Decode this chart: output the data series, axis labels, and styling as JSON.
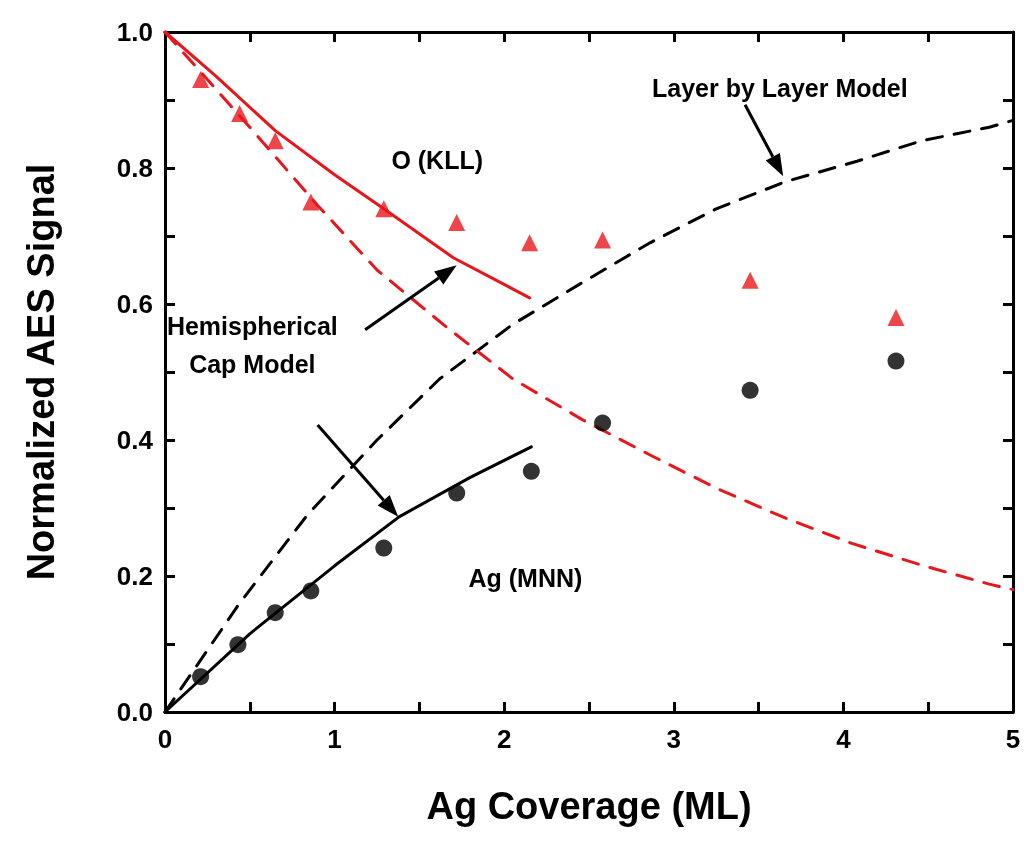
{
  "chart_data": {
    "type": "scatter",
    "xlabel": "Ag Coverage (ML)",
    "ylabel": "Normalized AES Signal",
    "xlim": [
      0,
      5
    ],
    "ylim": [
      0,
      1.0
    ],
    "xticks": [
      0,
      {
        "value": 0.5,
        "label": null
      },
      1,
      {
        "value": 1.5,
        "label": null
      },
      2,
      {
        "value": 2.5,
        "label": null
      },
      3,
      {
        "value": 3.5,
        "label": null
      },
      4,
      {
        "value": 4.5,
        "label": null
      },
      5
    ],
    "yticks": [
      {
        "value": 0,
        "label": "0.0"
      },
      {
        "value": 0.1,
        "label": null
      },
      {
        "value": 0.2,
        "label": "0.2"
      },
      {
        "value": 0.3,
        "label": null
      },
      {
        "value": 0.4,
        "label": "0.4"
      },
      {
        "value": 0.5,
        "label": null
      },
      {
        "value": 0.6,
        "label": "0.6"
      },
      {
        "value": 0.7,
        "label": null
      },
      {
        "value": 0.8,
        "label": "0.8"
      },
      {
        "value": 0.9,
        "label": null
      },
      {
        "value": 1.0,
        "label": "1.0"
      }
    ],
    "series": [
      {
        "type": "line",
        "color": "#000000",
        "marker": "none",
        "line_style": "dashed",
        "x": [
          0,
          0.44,
          0.84,
          1.25,
          1.62,
          2.05,
          2.45,
          2.86,
          3.25,
          3.66,
          4.08,
          4.46,
          4.86,
          5
        ],
        "values": [
          0,
          0.16,
          0.29,
          0.4,
          0.49,
          0.57,
          0.63,
          0.69,
          0.74,
          0.78,
          0.81,
          0.84,
          0.86,
          0.87
        ]
      },
      {
        "type": "line",
        "color": "#e8161b",
        "marker": "none",
        "line_style": "dashed",
        "x": [
          0,
          0.5,
          0.9,
          1.25,
          1.64,
          2.05,
          2.46,
          2.86,
          3.26,
          3.66,
          4.05,
          4.46,
          4.86,
          5
        ],
        "values": [
          1.0,
          0.86,
          0.745,
          0.65,
          0.57,
          0.49,
          0.43,
          0.378,
          0.328,
          0.285,
          0.248,
          0.216,
          0.188,
          0.18
        ]
      },
      {
        "type": "line",
        "color": "#e8161b",
        "marker": "none",
        "line_style": "solid",
        "x": [
          0,
          0.3,
          0.65,
          1.0,
          1.29,
          1.7,
          2.15
        ],
        "values": [
          1.0,
          0.935,
          0.855,
          0.79,
          0.74,
          0.668,
          0.609
        ]
      },
      {
        "type": "line",
        "color": "#000000",
        "marker": "none",
        "line_style": "solid",
        "x": [
          0,
          0.5,
          1.0,
          1.38,
          1.8,
          2.16
        ],
        "values": [
          0,
          0.115,
          0.215,
          0.287,
          0.345,
          0.39
        ]
      },
      {
        "color": "#e8161b",
        "marker": "triangle",
        "x": [
          0.21,
          0.44,
          0.65,
          0.86,
          1.29,
          1.72,
          2.15,
          2.58,
          3.45,
          4.31
        ],
        "values": [
          0.93,
          0.88,
          0.84,
          0.75,
          0.74,
          0.72,
          0.69,
          0.694,
          0.635,
          0.58
        ]
      },
      {
        "color": "#000000",
        "marker": "circle",
        "x": [
          0.21,
          0.43,
          0.65,
          0.86,
          1.29,
          1.72,
          2.16,
          2.58,
          3.45,
          4.31
        ],
        "values": [
          0.052,
          0.099,
          0.146,
          0.178,
          0.241,
          0.322,
          0.354,
          0.425,
          0.473,
          0.516
        ]
      }
    ],
    "annotations": [
      "Layer by Layer Model",
      "Hemispherical\nCap Model",
      "O (KLL)",
      "Ag (MNN)"
    ]
  }
}
